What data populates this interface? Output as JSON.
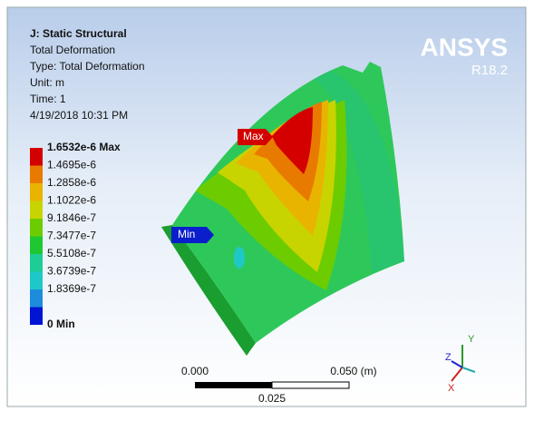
{
  "header": {
    "title": "J: Static Structural",
    "lines": [
      "Total Deformation",
      "Type: Total Deformation",
      "Unit: m",
      "Time: 1",
      "4/19/2018 10:31 PM"
    ]
  },
  "legend": [
    {
      "label": "1.6532e-6 Max",
      "color": "#d40000"
    },
    {
      "label": "1.4695e-6",
      "color": "#e87a00"
    },
    {
      "label": "1.2858e-6",
      "color": "#e8b400"
    },
    {
      "label": "1.1022e-6",
      "color": "#c8d400"
    },
    {
      "label": "9.1846e-7",
      "color": "#6ccc00"
    },
    {
      "label": "7.3477e-7",
      "color": "#1ec832"
    },
    {
      "label": "5.5108e-7",
      "color": "#1ecc96"
    },
    {
      "label": "3.6739e-7",
      "color": "#1ec8c8"
    },
    {
      "label": "1.8369e-7",
      "color": "#1e8cdc"
    },
    {
      "label": "0 Min",
      "color": "#0014d4"
    }
  ],
  "logo": {
    "name": "ANSYS",
    "version": "R18.2"
  },
  "probes": {
    "max": "Max",
    "min": "Min"
  },
  "scale_bar": {
    "start": "0.000",
    "end": "0.050 (m)",
    "mid": "0.025"
  },
  "triad": {
    "x": "X",
    "y": "Y",
    "z": "Z"
  }
}
